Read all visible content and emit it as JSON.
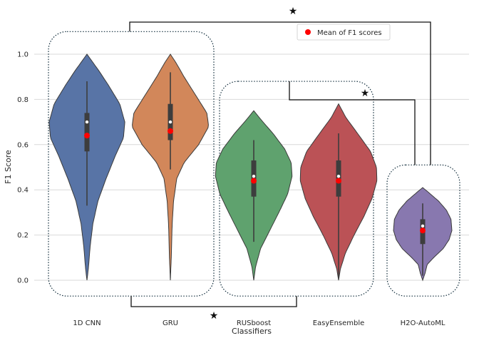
{
  "chart_data": {
    "type": "violin",
    "title": "",
    "xlabel": "Classifiers",
    "ylabel": "F1 Score",
    "ylim": [
      -0.13,
      1.16
    ],
    "yticks": [
      "0.0",
      "0.2",
      "0.4",
      "0.6",
      "0.8",
      "1.0"
    ],
    "grid": "horizontal",
    "categories": [
      "1D CNN",
      "GRU",
      "RUSboost",
      "EasyEnsemble",
      "H2O-AutoML"
    ],
    "colors": [
      "#5874a6",
      "#d2875a",
      "#5fa26e",
      "#bb5256",
      "#8878af"
    ],
    "series": [
      {
        "min": 0.0,
        "max": 1.0,
        "q1": 0.57,
        "median": 0.7,
        "q3": 0.74,
        "whisker_low": 0.33,
        "whisker_high": 0.88,
        "mean": 0.64,
        "profile": [
          [
            0.0,
            0.0
          ],
          [
            0.05,
            0.03
          ],
          [
            0.15,
            0.07
          ],
          [
            0.25,
            0.13
          ],
          [
            0.35,
            0.24
          ],
          [
            0.45,
            0.42
          ],
          [
            0.55,
            0.62
          ],
          [
            0.63,
            0.8
          ],
          [
            0.7,
            0.83
          ],
          [
            0.78,
            0.72
          ],
          [
            0.86,
            0.48
          ],
          [
            0.93,
            0.25
          ],
          [
            1.0,
            0.0
          ]
        ]
      },
      {
        "min": 0.0,
        "max": 1.0,
        "q1": 0.62,
        "median": 0.7,
        "q3": 0.78,
        "whisker_low": 0.49,
        "whisker_high": 0.92,
        "mean": 0.66,
        "profile": [
          [
            0.0,
            0.0
          ],
          [
            0.1,
            0.02
          ],
          [
            0.25,
            0.04
          ],
          [
            0.35,
            0.07
          ],
          [
            0.45,
            0.14
          ],
          [
            0.52,
            0.3
          ],
          [
            0.6,
            0.62
          ],
          [
            0.68,
            0.84
          ],
          [
            0.74,
            0.8
          ],
          [
            0.82,
            0.55
          ],
          [
            0.9,
            0.3
          ],
          [
            0.96,
            0.13
          ],
          [
            1.0,
            0.0
          ]
        ]
      },
      {
        "min": 0.0,
        "max": 0.75,
        "q1": 0.37,
        "median": 0.46,
        "q3": 0.53,
        "whisker_low": 0.17,
        "whisker_high": 0.62,
        "mean": 0.44,
        "profile": [
          [
            0.0,
            0.0
          ],
          [
            0.06,
            0.04
          ],
          [
            0.14,
            0.15
          ],
          [
            0.22,
            0.35
          ],
          [
            0.3,
            0.55
          ],
          [
            0.38,
            0.74
          ],
          [
            0.46,
            0.84
          ],
          [
            0.52,
            0.82
          ],
          [
            0.58,
            0.68
          ],
          [
            0.65,
            0.42
          ],
          [
            0.71,
            0.16
          ],
          [
            0.75,
            0.0
          ]
        ]
      },
      {
        "min": 0.0,
        "max": 0.78,
        "q1": 0.37,
        "median": 0.46,
        "q3": 0.53,
        "whisker_low": 0.01,
        "whisker_high": 0.65,
        "mean": 0.44,
        "profile": [
          [
            0.0,
            0.0
          ],
          [
            0.05,
            0.04
          ],
          [
            0.12,
            0.15
          ],
          [
            0.2,
            0.34
          ],
          [
            0.28,
            0.55
          ],
          [
            0.36,
            0.73
          ],
          [
            0.44,
            0.84
          ],
          [
            0.5,
            0.83
          ],
          [
            0.57,
            0.7
          ],
          [
            0.64,
            0.45
          ],
          [
            0.72,
            0.16
          ],
          [
            0.78,
            0.0
          ]
        ]
      },
      {
        "min": 0.0,
        "max": 0.41,
        "q1": 0.16,
        "median": 0.24,
        "q3": 0.27,
        "whisker_low": 0.02,
        "whisker_high": 0.34,
        "mean": 0.22,
        "profile": [
          [
            0.0,
            0.0
          ],
          [
            0.03,
            0.05
          ],
          [
            0.07,
            0.1
          ],
          [
            0.1,
            0.24
          ],
          [
            0.14,
            0.45
          ],
          [
            0.18,
            0.58
          ],
          [
            0.22,
            0.64
          ],
          [
            0.27,
            0.62
          ],
          [
            0.31,
            0.52
          ],
          [
            0.35,
            0.35
          ],
          [
            0.39,
            0.12
          ],
          [
            0.41,
            0.0
          ]
        ]
      }
    ],
    "groups": [
      [
        "1D CNN",
        "GRU"
      ],
      [
        "RUSboost",
        "EasyEnsemble"
      ],
      [
        "H2O-AutoML"
      ]
    ],
    "significance": [
      {
        "from_group": 0,
        "to_group": 1,
        "symbol": "★",
        "position": "bottom"
      },
      {
        "from_group": 1,
        "to_group": 2,
        "symbol": "★",
        "position": "top"
      },
      {
        "from_group": 0,
        "to_group": 2,
        "symbol": "★",
        "position": "top"
      }
    ],
    "legend": {
      "label": "Mean of F1 scores",
      "marker_color": "#ff0000",
      "placement": "top-center"
    }
  }
}
